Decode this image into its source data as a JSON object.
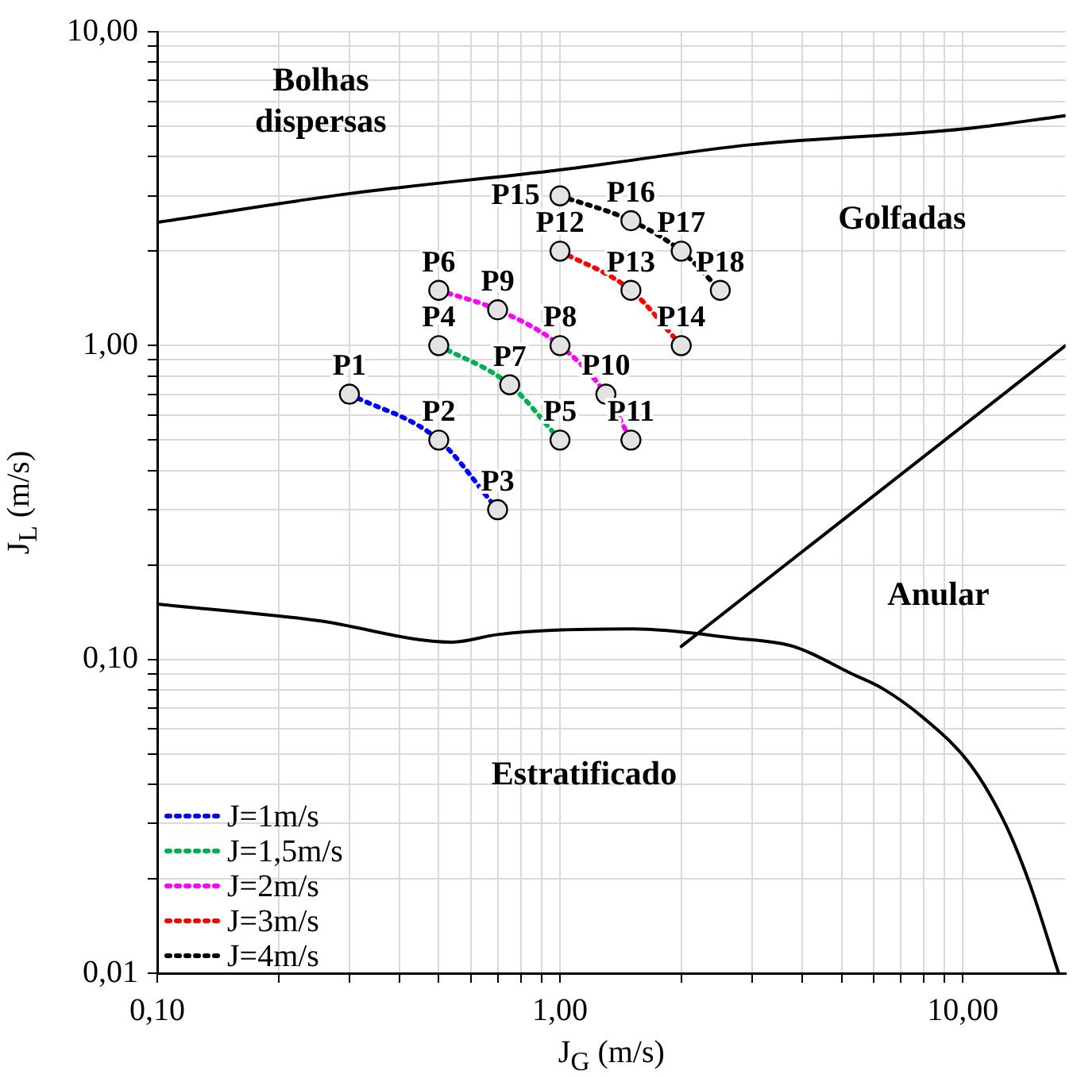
{
  "chart_data": {
    "type": "line",
    "xlabel": "J$_{G}$ (m/s)",
    "ylabel": "J$_{L}$ (m/s)",
    "log": "xy",
    "grid": true,
    "legend": "bottom left",
    "line_style": "dotted",
    "marker": "circle",
    "xlim": [
      0.1,
      18
    ],
    "ylim": [
      0.01,
      10
    ],
    "xticks": [
      {
        "value": 0.1,
        "label": "0,10"
      },
      {
        "value": 0.2,
        "label": null
      },
      {
        "value": 0.3,
        "label": null
      },
      {
        "value": 0.4,
        "label": null
      },
      {
        "value": 0.5,
        "label": null
      },
      {
        "value": 0.6,
        "label": null
      },
      {
        "value": 0.7,
        "label": null
      },
      {
        "value": 0.8,
        "label": null
      },
      {
        "value": 0.9,
        "label": null
      },
      {
        "value": 1,
        "label": "1,00"
      },
      {
        "value": 2,
        "label": null
      },
      {
        "value": 3,
        "label": null
      },
      {
        "value": 4,
        "label": null
      },
      {
        "value": 5,
        "label": null
      },
      {
        "value": 6,
        "label": null
      },
      {
        "value": 7,
        "label": null
      },
      {
        "value": 8,
        "label": null
      },
      {
        "value": 9,
        "label": null
      },
      {
        "value": 10,
        "label": "10,00"
      }
    ],
    "yticks": [
      {
        "value": 0.01,
        "label": "0,01"
      },
      {
        "value": 0.02,
        "label": null
      },
      {
        "value": 0.03,
        "label": null
      },
      {
        "value": 0.04,
        "label": null
      },
      {
        "value": 0.05,
        "label": null
      },
      {
        "value": 0.06,
        "label": null
      },
      {
        "value": 0.07,
        "label": null
      },
      {
        "value": 0.08,
        "label": null
      },
      {
        "value": 0.09,
        "label": null
      },
      {
        "value": 0.1,
        "label": "0,10"
      },
      {
        "value": 0.2,
        "label": null
      },
      {
        "value": 0.3,
        "label": null
      },
      {
        "value": 0.4,
        "label": null
      },
      {
        "value": 0.5,
        "label": null
      },
      {
        "value": 0.6,
        "label": null
      },
      {
        "value": 0.7,
        "label": null
      },
      {
        "value": 0.8,
        "label": null
      },
      {
        "value": 0.9,
        "label": null
      },
      {
        "value": 1,
        "label": "1,00"
      },
      {
        "value": 2,
        "label": null
      },
      {
        "value": 3,
        "label": null
      },
      {
        "value": 4,
        "label": null
      },
      {
        "value": 5,
        "label": null
      },
      {
        "value": 6,
        "label": null
      },
      {
        "value": 7,
        "label": null
      },
      {
        "value": 8,
        "label": null
      },
      {
        "value": 9,
        "label": null
      },
      {
        "value": 10,
        "label": "10,00"
      }
    ],
    "series": [
      {
        "name": "J=1m/s",
        "color": "#0000ff",
        "x": [
          0.3,
          0.5,
          0.7
        ],
        "values": [
          0.7,
          0.5,
          0.3
        ]
      },
      {
        "name": "J=1,5m/s",
        "color": "#00b050",
        "x": [
          0.5,
          0.75,
          1
        ],
        "values": [
          1,
          0.75,
          0.5
        ]
      },
      {
        "name": "J=2m/s",
        "color": "#ff00ff",
        "x": [
          0.5,
          0.7,
          1,
          1.3,
          1.5
        ],
        "values": [
          1.5,
          1.3,
          1,
          0.7,
          0.5
        ]
      },
      {
        "name": "J=3m/s",
        "color": "#ff0000",
        "x": [
          1,
          1.5,
          2
        ],
        "values": [
          2,
          1.5,
          1
        ]
      },
      {
        "name": "J=4m/s",
        "color": "#000000",
        "x": [
          1,
          1.5,
          2,
          2.5
        ],
        "values": [
          3,
          2.5,
          2,
          1.5
        ]
      },
      {
        "color": "#000000",
        "line_style": "solid",
        "marker": "none",
        "x": [
          0.1,
          0.3,
          1,
          3,
          10,
          18
        ],
        "values": [
          2.47,
          3.05,
          3.63,
          4.37,
          4.9,
          5.4
        ]
      },
      {
        "color": "#000000",
        "line_style": "solid",
        "marker": "none",
        "x": [
          0.1,
          0.25,
          0.54,
          0.7,
          0.98,
          1.52,
          2.7,
          3.8,
          5.3,
          6.3,
          8,
          10.5,
          12.8,
          14.7,
          17.3
        ],
        "values": [
          0.15,
          0.133,
          0.1135,
          0.12,
          0.124,
          0.125,
          0.117,
          0.11,
          0.09,
          0.081,
          0.065,
          0.0458,
          0.0296,
          0.0191,
          0.01
        ]
      },
      {
        "color": "#000000",
        "line_style": "solid",
        "marker": "none",
        "x": [
          2,
          18
        ],
        "values": [
          0.11,
          1.0
        ]
      }
    ],
    "annotations": [
      "Bolhas dispersas",
      "Golfadas",
      "Anular",
      "Estratificado",
      {
        "text": "P1",
        "x": 0.3,
        "y": 0.7
      },
      {
        "text": "P2",
        "x": 0.5,
        "y": 0.5
      },
      {
        "text": "P3",
        "x": 0.7,
        "y": 0.3
      },
      {
        "text": "P4",
        "x": 0.5,
        "y": 1
      },
      {
        "text": "P5",
        "x": 1,
        "y": 0.5
      },
      {
        "text": "P6",
        "x": 0.5,
        "y": 1.5
      },
      {
        "text": "P7",
        "x": 0.75,
        "y": 0.75
      },
      {
        "text": "P8",
        "x": 1,
        "y": 1
      },
      {
        "text": "P9",
        "x": 0.7,
        "y": 1.3
      },
      {
        "text": "P10",
        "x": 1.3,
        "y": 0.7
      },
      {
        "text": "P11",
        "x": 1.5,
        "y": 0.5
      },
      {
        "text": "P12",
        "x": 1,
        "y": 2
      },
      {
        "text": "P13",
        "x": 1.5,
        "y": 1.5
      },
      {
        "text": "P14",
        "x": 2,
        "y": 1
      },
      {
        "text": "P15",
        "x": 1,
        "y": 3
      },
      {
        "text": "P16",
        "x": 1.5,
        "y": 2.5
      },
      {
        "text": "P17",
        "x": 2,
        "y": 2
      },
      {
        "text": "P18",
        "x": 2.5,
        "y": 1.5
      }
    ]
  }
}
